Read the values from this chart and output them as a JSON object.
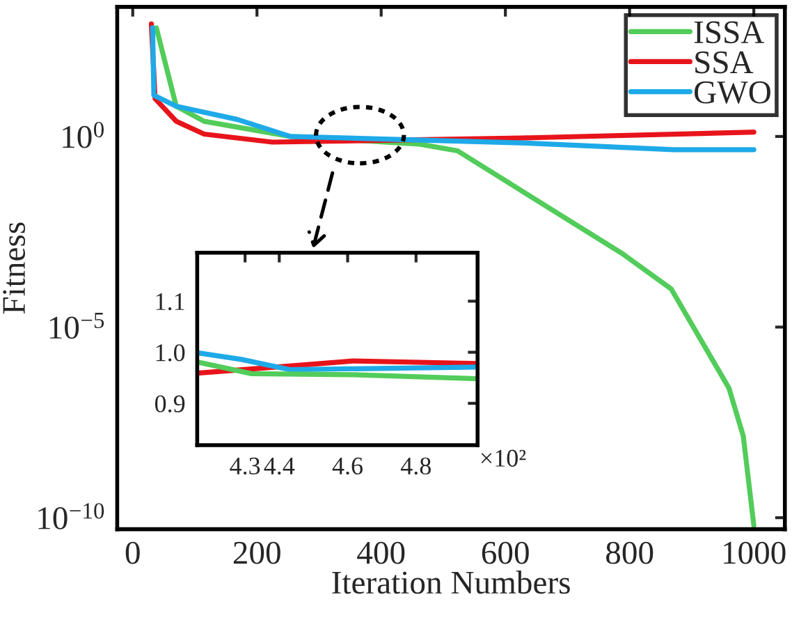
{
  "chart_data": [
    {
      "type": "line",
      "xlabel": "Iteration Numbers",
      "ylabel": "Fitness",
      "log": "y",
      "grid": false,
      "legend": "top right",
      "line_style": "solid",
      "marker": "none",
      "xlim": [
        -25,
        1050
      ],
      "xticks": [
        0,
        200,
        400,
        600,
        800,
        1000
      ],
      "ylim": [
        5e-11,
        2500
      ],
      "yticks": [
        {
          "value": 1e-10,
          "label": "10$^{−10}$"
        },
        {
          "value": 1e-05,
          "label": "10$^{−5}$"
        },
        {
          "value": 1,
          "label": "10$^{0}$"
        }
      ],
      "series": [
        {
          "name": "ISSA",
          "color": "#52cc5a",
          "x": [
            38,
            70,
            115,
            254,
            462,
            523,
            788,
            867,
            960,
            983,
            1000
          ],
          "values": [
            708,
            6.2,
            2.5,
            1.0,
            0.63,
            0.42,
            0.00085,
            0.0001,
            2.5e-07,
            1.4e-08,
            6.3e-11
          ]
        },
        {
          "name": "SSA",
          "color": "#e8141b",
          "x": [
            30,
            36,
            70,
            115,
            225,
            625,
            1000
          ],
          "values": [
            890,
            9.8,
            2.5,
            1.15,
            0.71,
            0.91,
            1.3
          ]
        },
        {
          "name": "GWO",
          "color": "#1eaae8",
          "x": [
            32,
            34,
            70,
            168,
            254,
            625,
            871,
            1000
          ],
          "values": [
            708,
            12,
            6.2,
            2.8,
            1.0,
            0.68,
            0.45,
            0.45
          ]
        }
      ]
    },
    {
      "type": "line",
      "grid": false,
      "line_style": "solid",
      "marker": "none",
      "xlabel": "×10²",
      "xlim": [
        4.16,
        4.98
      ],
      "xticks": [
        {
          "value": 4.3,
          "label": "4.3"
        },
        {
          "value": 4.4,
          "label": "4.4"
        },
        {
          "value": 4.6,
          "label": "4.6"
        },
        {
          "value": 4.8,
          "label": "4.8"
        }
      ],
      "ylim": [
        0.818,
        1.195
      ],
      "yticks": [
        {
          "value": 0.9,
          "label": "0.9"
        },
        {
          "value": 1.0,
          "label": "1.0"
        },
        {
          "value": 1.1,
          "label": "1.1"
        }
      ],
      "series": [
        {
          "color": "#e8141b",
          "x": [
            4.16,
            4.43,
            4.616,
            4.98
          ],
          "values": [
            0.959,
            0.973,
            0.983,
            0.978
          ]
        },
        {
          "color": "#1eaae8",
          "x": [
            4.16,
            4.289,
            4.43,
            4.98
          ],
          "values": [
            0.999,
            0.986,
            0.966,
            0.971
          ]
        },
        {
          "color": "#52cc5a",
          "x": [
            4.16,
            4.319,
            4.616,
            4.98
          ],
          "values": [
            0.981,
            0.958,
            0.956,
            0.948
          ]
        }
      ]
    }
  ]
}
